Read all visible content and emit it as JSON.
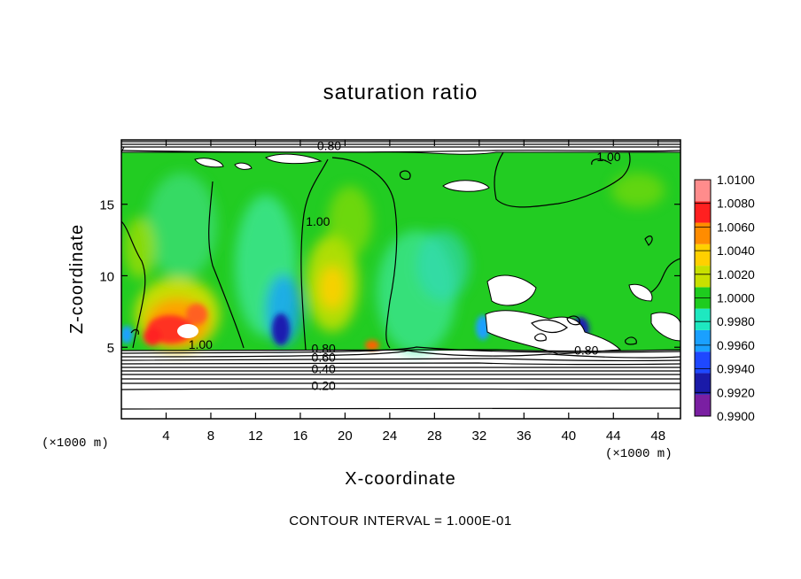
{
  "chart_data": {
    "type": "heatmap",
    "title": "saturation ratio",
    "xlabel": "X-coordinate",
    "ylabel": "Z-coordinate",
    "x_unit": "(×1000 m)",
    "z_unit": "(×1000 m)",
    "xlim": [
      0,
      50
    ],
    "ylim": [
      0,
      19.5
    ],
    "x_ticks": [
      4,
      8,
      12,
      16,
      20,
      24,
      28,
      32,
      36,
      40,
      44,
      48
    ],
    "y_ticks": [
      5,
      10,
      15
    ],
    "colorbar": {
      "levels": [
        0.99,
        0.992,
        0.994,
        0.996,
        0.998,
        1.0,
        1.002,
        1.004,
        1.006,
        1.008,
        1.01
      ],
      "labels": [
        "0.9900",
        "0.9920",
        "0.9940",
        "0.9960",
        "0.9980",
        "1.0000",
        "1.0020",
        "1.0040",
        "1.0060",
        "1.0080",
        "1.0100"
      ],
      "colors": [
        "#7a1fa2",
        "#1a1aa8",
        "#1e48ff",
        "#1aa0ff",
        "#1ee8c0",
        "#1ecc1e",
        "#c8e000",
        "#ffd000",
        "#ff8c00",
        "#ff2020",
        "#ff8c8c"
      ]
    },
    "contour_labels": [
      {
        "text": "0.80",
        "x": 17.5,
        "y": 18.8
      },
      {
        "text": "1.00",
        "x": 16.5,
        "y": 13.5
      },
      {
        "text": "1.00",
        "x": 42.5,
        "y": 18.0
      },
      {
        "text": "1.00",
        "x": 6.0,
        "y": 4.9
      },
      {
        "text": "0.80",
        "x": 17.0,
        "y": 4.6
      },
      {
        "text": "0.60",
        "x": 17.0,
        "y": 4.0
      },
      {
        "text": "0.40",
        "x": 17.0,
        "y": 3.2
      },
      {
        "text": "0.20",
        "x": 17.0,
        "y": 2.0
      },
      {
        "text": "0.80",
        "x": 40.5,
        "y": 4.5
      }
    ],
    "annotation": "CONTOUR INTERVAL = 1.000E-01"
  }
}
